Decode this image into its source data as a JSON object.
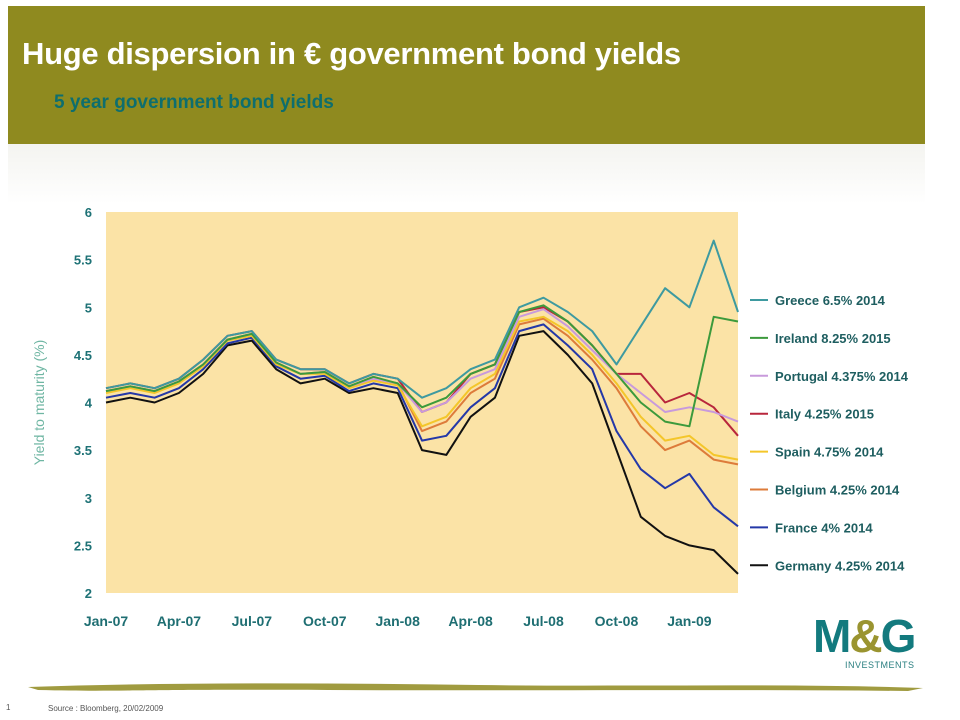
{
  "header": {
    "title": "Huge dispersion in € government bond yields",
    "subtitle": "5 year government bond yields"
  },
  "footer": {
    "source": "Source : Bloomberg, 20/02/2009",
    "slide_number": "1"
  },
  "logo": {
    "text_left": "M",
    "text_amp": "&",
    "text_right": "G",
    "sub": "INVESTMENTS"
  },
  "colors": {
    "header_bg": "#8f8a1f",
    "plot_bg": "#fbe3a6",
    "axis_label": "#6fb6a3"
  },
  "chart_data": {
    "type": "line",
    "title": "",
    "xlabel": "",
    "ylabel": "Yield to maturity (%)",
    "ylim": [
      2,
      6
    ],
    "yticks": [
      2,
      2.5,
      3,
      3.5,
      4,
      4.5,
      5,
      5.5,
      6
    ],
    "ytick_labels": [
      "2",
      "2.5",
      "3",
      "3.5",
      "4",
      "4.5",
      "5",
      "5.5",
      "6"
    ],
    "xlim": [
      "2007-01",
      "2009-03"
    ],
    "xticks": [
      "2007-01",
      "2007-04",
      "2007-07",
      "2007-10",
      "2008-01",
      "2008-04",
      "2008-07",
      "2008-10",
      "2009-01"
    ],
    "xtick_labels": [
      "Jan-07",
      "Apr-07",
      "Jul-07",
      "Oct-07",
      "Jan-08",
      "Apr-08",
      "Jul-08",
      "Oct-08",
      "Jan-09"
    ],
    "grid": false,
    "legend_position": "right",
    "x": [
      "2007-01",
      "2007-02",
      "2007-03",
      "2007-04",
      "2007-05",
      "2007-06",
      "2007-07",
      "2007-08",
      "2007-09",
      "2007-10",
      "2007-11",
      "2007-12",
      "2008-01",
      "2008-02",
      "2008-03",
      "2008-04",
      "2008-05",
      "2008-06",
      "2008-07",
      "2008-08",
      "2008-09",
      "2008-10",
      "2008-11",
      "2008-12",
      "2009-01",
      "2009-02",
      "2009-03"
    ],
    "series": [
      {
        "name": "Greece 6.5% 2014",
        "color": "#3e9aa0",
        "values": [
          4.15,
          4.2,
          4.15,
          4.25,
          4.45,
          4.7,
          4.75,
          4.45,
          4.35,
          4.35,
          4.2,
          4.3,
          4.25,
          4.05,
          4.15,
          4.35,
          4.45,
          5.0,
          5.1,
          4.95,
          4.75,
          4.4,
          4.8,
          5.2,
          5.0,
          5.7,
          4.95
        ]
      },
      {
        "name": "Ireland 8.25% 2015",
        "color": "#3c9a3c",
        "values": [
          4.12,
          4.17,
          4.12,
          4.22,
          4.4,
          4.66,
          4.72,
          4.42,
          4.3,
          4.32,
          4.17,
          4.27,
          4.2,
          3.95,
          4.05,
          4.3,
          4.4,
          4.95,
          5.02,
          4.85,
          4.6,
          4.3,
          4.0,
          3.8,
          3.75,
          4.9,
          4.85
        ]
      },
      {
        "name": "Portugal 4.375% 2014",
        "color": "#c89adc",
        "values": [
          4.12,
          4.17,
          4.12,
          4.22,
          4.4,
          4.66,
          4.72,
          4.42,
          4.3,
          4.32,
          4.17,
          4.25,
          4.2,
          3.9,
          4.0,
          4.25,
          4.35,
          4.9,
          4.98,
          4.8,
          4.55,
          4.3,
          4.1,
          3.9,
          3.95,
          3.9,
          3.8
        ]
      },
      {
        "name": "Italy 4.25% 2015",
        "color": "#b8263c",
        "values": [
          4.15,
          4.2,
          4.15,
          4.25,
          4.45,
          4.7,
          4.75,
          4.45,
          4.35,
          4.35,
          4.2,
          4.3,
          4.25,
          3.9,
          4.0,
          4.3,
          4.4,
          4.95,
          5.0,
          4.85,
          4.6,
          4.3,
          4.3,
          4.0,
          4.1,
          3.95,
          3.65
        ]
      },
      {
        "name": "Spain 4.75% 2014",
        "color": "#f4c62a",
        "values": [
          4.1,
          4.15,
          4.1,
          4.2,
          4.38,
          4.65,
          4.7,
          4.4,
          4.3,
          4.3,
          4.15,
          4.23,
          4.18,
          3.75,
          3.85,
          4.15,
          4.3,
          4.85,
          4.9,
          4.75,
          4.5,
          4.2,
          3.85,
          3.6,
          3.65,
          3.45,
          3.4
        ]
      },
      {
        "name": "Belgium 4.25% 2014",
        "color": "#dd7b3a",
        "values": [
          4.12,
          4.17,
          4.12,
          4.22,
          4.4,
          4.66,
          4.72,
          4.42,
          4.3,
          4.32,
          4.17,
          4.25,
          4.2,
          3.7,
          3.8,
          4.1,
          4.25,
          4.82,
          4.88,
          4.7,
          4.45,
          4.15,
          3.75,
          3.5,
          3.6,
          3.4,
          3.35
        ]
      },
      {
        "name": "France 4% 2014",
        "color": "#2438a8",
        "values": [
          4.05,
          4.1,
          4.05,
          4.15,
          4.35,
          4.62,
          4.68,
          4.38,
          4.25,
          4.28,
          4.12,
          4.2,
          4.15,
          3.6,
          3.65,
          3.95,
          4.15,
          4.75,
          4.82,
          4.6,
          4.35,
          3.7,
          3.3,
          3.1,
          3.25,
          2.9,
          2.7
        ]
      },
      {
        "name": "Germany 4.25% 2014",
        "color": "#111111",
        "values": [
          4.0,
          4.05,
          4.0,
          4.1,
          4.3,
          4.6,
          4.65,
          4.35,
          4.2,
          4.25,
          4.1,
          4.15,
          4.1,
          3.5,
          3.45,
          3.85,
          4.05,
          4.7,
          4.75,
          4.5,
          4.2,
          3.5,
          2.8,
          2.6,
          2.5,
          2.45,
          2.2
        ]
      }
    ]
  }
}
